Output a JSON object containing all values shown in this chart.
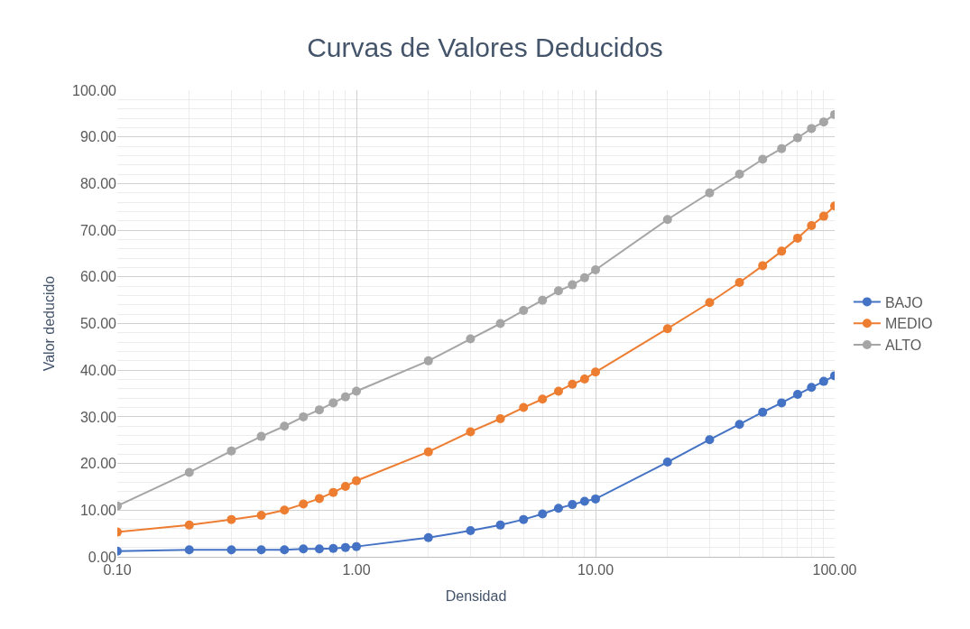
{
  "chart_data": {
    "type": "line",
    "title": "Curvas de Valores Deducidos",
    "xlabel": "Densidad",
    "ylabel": "Valor deducido",
    "x": [
      0.1,
      0.2,
      0.3,
      0.4,
      0.5,
      0.6,
      0.7,
      0.8,
      0.9,
      1,
      2,
      3,
      4,
      5,
      6,
      7,
      8,
      9,
      10,
      20,
      30,
      40,
      50,
      60,
      70,
      80,
      90,
      100
    ],
    "series": [
      {
        "name": "BAJO",
        "color": "#4472c4",
        "values": [
          1.2,
          1.5,
          1.5,
          1.5,
          1.5,
          1.7,
          1.7,
          1.8,
          2.0,
          2.2,
          4.1,
          5.6,
          6.8,
          8.0,
          9.2,
          10.4,
          11.2,
          11.9,
          12.4,
          20.3,
          25.1,
          28.4,
          31.0,
          33.0,
          34.8,
          36.3,
          37.6,
          38.8
        ]
      },
      {
        "name": "MEDIO",
        "color": "#ed7d31",
        "values": [
          5.3,
          6.8,
          8.0,
          8.9,
          10.0,
          11.3,
          12.5,
          13.8,
          15.1,
          16.3,
          22.5,
          26.8,
          29.6,
          32.0,
          33.8,
          35.5,
          37.0,
          38.1,
          39.6,
          48.9,
          54.5,
          58.8,
          62.4,
          65.5,
          68.3,
          71.0,
          73.0,
          75.2
        ]
      },
      {
        "name": "ALTO",
        "color": "#a5a5a5",
        "values": [
          10.9,
          18.1,
          22.7,
          25.8,
          28.0,
          30.0,
          31.5,
          33.0,
          34.3,
          35.5,
          42.0,
          46.7,
          50.0,
          52.8,
          55.0,
          57.0,
          58.3,
          59.8,
          61.5,
          72.3,
          78.0,
          82.0,
          85.2,
          87.5,
          89.8,
          91.8,
          93.2,
          94.8
        ]
      }
    ],
    "log": "x",
    "xlim": [
      0.1,
      100
    ],
    "xticks": [
      {
        "value": 0.1,
        "label": "0.10"
      },
      {
        "value": 1,
        "label": "1.00"
      },
      {
        "value": 10,
        "label": "10.00"
      },
      {
        "value": 100,
        "label": "100.00"
      }
    ],
    "ylim": [
      0,
      100
    ],
    "yticks": [
      {
        "value": 0,
        "label": "0.00"
      },
      {
        "value": 10,
        "label": "10.00"
      },
      {
        "value": 20,
        "label": "20.00"
      },
      {
        "value": 30,
        "label": "30.00"
      },
      {
        "value": 40,
        "label": "40.00"
      },
      {
        "value": 50,
        "label": "50.00"
      },
      {
        "value": 60,
        "label": "60.00"
      },
      {
        "value": 70,
        "label": "70.00"
      },
      {
        "value": 80,
        "label": "80.00"
      },
      {
        "value": 90,
        "label": "90.00"
      },
      {
        "value": 100,
        "label": "100.00"
      }
    ],
    "grid": true,
    "legend": "right",
    "marker": "circle",
    "line_style": "solid"
  }
}
